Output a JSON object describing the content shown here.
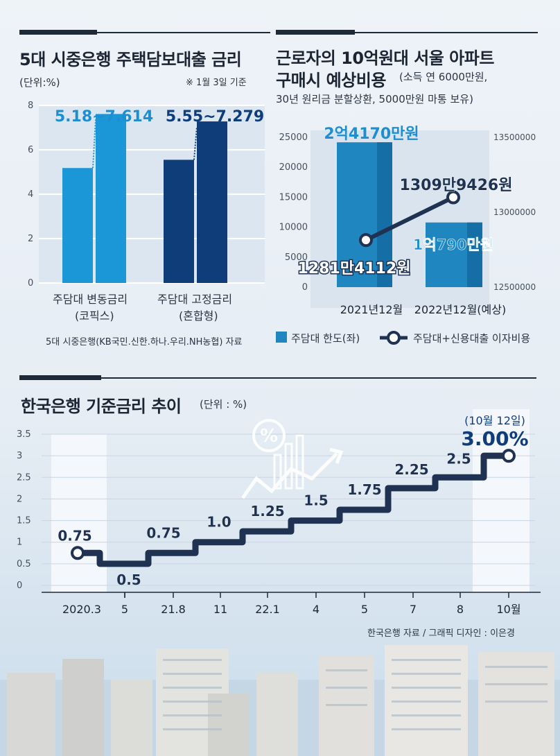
{
  "colors": {
    "light_blue": "#1b96d6",
    "dark_blue": "#0f3d7a",
    "teal": "#1f86bf",
    "navy": "#1f3252",
    "label_blue": "#1d8fd0"
  },
  "panel1": {
    "title": "5대 시중은행 주택담보대출 금리",
    "unit": "(단위:%)",
    "note": "※ 1월 3일 기준",
    "range_variable": "5.18~7.614",
    "range_fixed": "5.55~7.279",
    "source": "5대 시중은행(KB국민.신한.하나.우리.NH농협) 자료",
    "group1_line1": "주담대 변동금리",
    "group1_line2": "(코픽스)",
    "group2_line1": "주담대 고정금리",
    "group2_line2": "(혼합형)"
  },
  "panel2": {
    "title_line1": "근로자의 10억원대 서울 아파트",
    "title_line2": "구매시 예상비용",
    "title_sub1": "(소득 연 6000만원,",
    "title_sub2": "30년 원리금 분할상환, 5000만원 마통 보유)",
    "bar_label_2021": "2억4170만원",
    "bar_label_2022": "1억790만원",
    "line_label_2021": "1281만4112원",
    "line_label_2022": "1309만9426원",
    "legend_bar": "주담대 한도(좌)",
    "legend_line": "주담대+신용대출 이자비용"
  },
  "panel3": {
    "title": "한국은행 기준금리 추이",
    "unit": "(단위 : %)",
    "last_date": "(10월 12일)",
    "last_value": "3.00%",
    "credit": "한국은행 자료 / 그래픽 디자인 : 이은경",
    "step_labels": [
      "0.75",
      "0.5",
      "0.75",
      "1.0",
      "1.25",
      "1.5",
      "1.75",
      "2.25",
      "2.5"
    ]
  },
  "chart_data": [
    {
      "type": "bar",
      "title": "5대 시중은행 주택담보대출 금리",
      "ylabel": "(단위:%)",
      "ylim": [
        0,
        8
      ],
      "yticks": [
        0,
        2,
        4,
        6,
        8
      ],
      "categories": [
        "주담대 변동금리 (코픽스)",
        "주담대 고정금리 (혼합형)"
      ],
      "series": [
        {
          "values": [
            5.18,
            5.55
          ]
        },
        {
          "values": [
            7.614,
            7.279
          ]
        }
      ],
      "grid": true
    },
    {
      "type": "bar",
      "categories": [
        "2021년12월",
        "2022년12월(예상)"
      ],
      "left_ylim": [
        0,
        25000
      ],
      "left_yticks": [
        0,
        5000,
        10000,
        15000,
        20000,
        25000
      ],
      "right_ylim": [
        12500000,
        13500000
      ],
      "right_yticks": [
        12500000,
        13000000,
        13500000
      ],
      "series": [
        {
          "name": "주담대 한도(좌)",
          "type": "bar",
          "axis": "left",
          "values": [
            24170,
            10790
          ]
        },
        {
          "name": "주담대+신용대출 이자비용",
          "type": "line",
          "axis": "right",
          "values": [
            12814112,
            13099426
          ]
        }
      ]
    },
    {
      "type": "line",
      "title": "한국은행 기준금리 추이",
      "ylabel": "(단위 : %)",
      "ylim": [
        0,
        3.5
      ],
      "yticks": [
        "0",
        "0.5",
        "1",
        "1.5",
        "2",
        "2.5",
        "3",
        "3.5"
      ],
      "x": [
        "2020.3",
        "5",
        "21.8",
        "11",
        "22.1",
        "4",
        "5",
        "7",
        "8",
        "10월"
      ],
      "values": [
        0.75,
        0.5,
        0.75,
        1.0,
        1.25,
        1.5,
        1.75,
        2.25,
        2.5,
        3.0
      ],
      "step": true,
      "grid": true
    }
  ]
}
